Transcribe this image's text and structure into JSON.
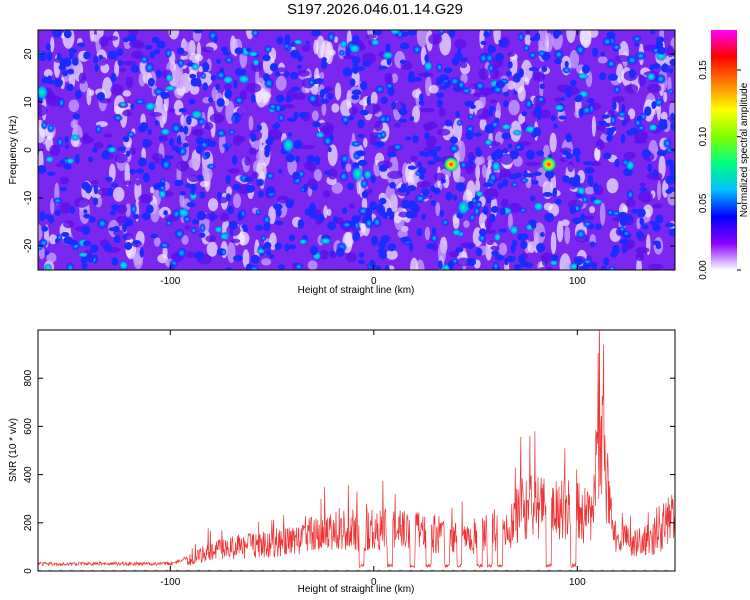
{
  "title": "S197.2026.046.01.14.G29",
  "chart_data": [
    {
      "type": "heatmap",
      "xlabel": "Height of straight line (km)",
      "ylabel": "Frequency (Hz)",
      "xlim": [
        -165,
        148
      ],
      "ylim": [
        -25,
        25
      ],
      "xticks": [
        -100,
        0,
        100
      ],
      "yticks": [
        -20,
        -10,
        0,
        10,
        20
      ],
      "colorbar": {
        "label": "Normalized spectral amplitude",
        "range": [
          0,
          0.18
        ],
        "ticks": [
          "0.00",
          "0.05",
          "0.10",
          "0.15"
        ],
        "colors": [
          "#ffffff",
          "#8800ff",
          "#0000ff",
          "#00bfff",
          "#00ff80",
          "#80ff00",
          "#ffff00",
          "#ff8000",
          "#ff0000",
          "#ff00ff"
        ]
      },
      "hotspots": [
        {
          "x": 38,
          "y": -3,
          "amp": 0.18
        },
        {
          "x": 86,
          "y": -3,
          "amp": 0.17
        },
        {
          "x": -163,
          "y": 12,
          "amp": 0.12
        },
        {
          "x": 44,
          "y": -12,
          "amp": 0.09
        },
        {
          "x": -8,
          "y": -5,
          "amp": 0.09
        },
        {
          "x": -42,
          "y": 1,
          "amp": 0.08
        }
      ]
    },
    {
      "type": "line",
      "xlabel": "Height of straight line (km)",
      "ylabel": "SNR (10 * v/v)",
      "xlim": [
        -165,
        148
      ],
      "ylim": [
        0,
        1000
      ],
      "xticks": [
        -100,
        0,
        100
      ],
      "yticks": [
        0,
        200,
        400,
        600,
        800
      ],
      "color": "#ee3333",
      "envelope": [
        {
          "x": -165,
          "y": 30
        },
        {
          "x": -130,
          "y": 30
        },
        {
          "x": -100,
          "y": 30
        },
        {
          "x": -90,
          "y": 60
        },
        {
          "x": -82,
          "y": 110
        },
        {
          "x": -60,
          "y": 150
        },
        {
          "x": -40,
          "y": 170
        },
        {
          "x": -32,
          "y": 200
        },
        {
          "x": -20,
          "y": 240
        },
        {
          "x": -5,
          "y": 230
        },
        {
          "x": 10,
          "y": 240
        },
        {
          "x": 30,
          "y": 210
        },
        {
          "x": 50,
          "y": 200
        },
        {
          "x": 60,
          "y": 230
        },
        {
          "x": 66,
          "y": 220
        },
        {
          "x": 72,
          "y": 350
        },
        {
          "x": 80,
          "y": 380
        },
        {
          "x": 90,
          "y": 360
        },
        {
          "x": 100,
          "y": 330
        },
        {
          "x": 108,
          "y": 320
        },
        {
          "x": 110,
          "y": 700
        },
        {
          "x": 113,
          "y": 600
        },
        {
          "x": 118,
          "y": 200
        },
        {
          "x": 130,
          "y": 160
        },
        {
          "x": 140,
          "y": 200
        },
        {
          "x": 144,
          "y": 300
        },
        {
          "x": 148,
          "y": 280
        }
      ],
      "dropouts": [
        -6,
        8,
        19,
        27,
        36,
        42,
        52,
        57,
        62,
        86,
        98
      ]
    }
  ]
}
